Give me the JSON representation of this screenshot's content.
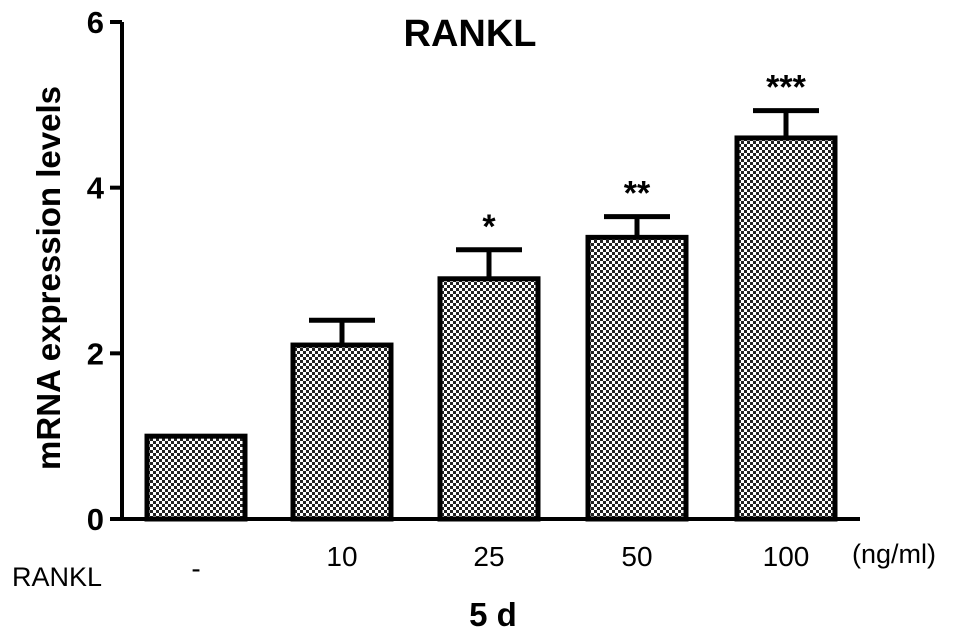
{
  "chart_data": {
    "type": "bar",
    "title": "RANKL",
    "ylabel": "mRNA expression levels",
    "xlabel": "5 d",
    "row_label": "RANKL",
    "unit_label": "(ng/ml)",
    "categories": [
      "-",
      "10",
      "25",
      "50",
      "100"
    ],
    "values": [
      1.0,
      2.1,
      2.9,
      3.4,
      4.6
    ],
    "errors": [
      0.0,
      0.3,
      0.35,
      0.25,
      0.33
    ],
    "significance": [
      "",
      "",
      "*",
      "**",
      "***"
    ],
    "ylim": [
      0,
      6
    ],
    "yticks": [
      0,
      2,
      4,
      6
    ],
    "grid": false,
    "bar_fill": "checkered"
  }
}
